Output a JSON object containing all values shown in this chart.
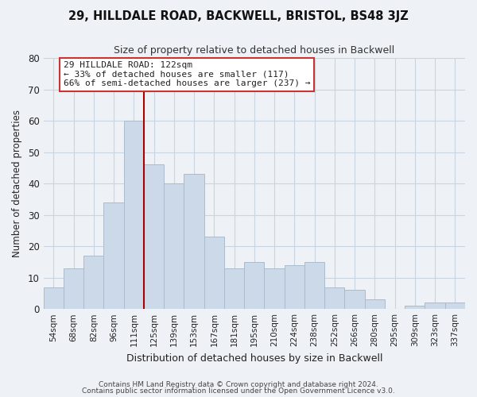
{
  "title": "29, HILLDALE ROAD, BACKWELL, BRISTOL, BS48 3JZ",
  "subtitle": "Size of property relative to detached houses in Backwell",
  "xlabel": "Distribution of detached houses by size in Backwell",
  "ylabel": "Number of detached properties",
  "bar_labels": [
    "54sqm",
    "68sqm",
    "82sqm",
    "96sqm",
    "111sqm",
    "125sqm",
    "139sqm",
    "153sqm",
    "167sqm",
    "181sqm",
    "195sqm",
    "210sqm",
    "224sqm",
    "238sqm",
    "252sqm",
    "266sqm",
    "280sqm",
    "295sqm",
    "309sqm",
    "323sqm",
    "337sqm"
  ],
  "bar_values": [
    7,
    13,
    17,
    34,
    60,
    46,
    40,
    43,
    23,
    13,
    15,
    13,
    14,
    15,
    7,
    6,
    3,
    0,
    1,
    2,
    2
  ],
  "bar_color": "#ccd9e8",
  "bar_edge_color": "#aabccc",
  "vline_x_index": 5,
  "vline_color": "#aa0000",
  "annotation_line1": "29 HILLDALE ROAD: 122sqm",
  "annotation_line2": "← 33% of detached houses are smaller (117)",
  "annotation_line3": "66% of semi-detached houses are larger (237) →",
  "annotation_box_color": "#ffffff",
  "annotation_box_edge": "#cc3333",
  "ylim": [
    0,
    80
  ],
  "yticks": [
    0,
    10,
    20,
    30,
    40,
    50,
    60,
    70,
    80
  ],
  "footer_line1": "Contains HM Land Registry data © Crown copyright and database right 2024.",
  "footer_line2": "Contains public sector information licensed under the Open Government Licence v3.0.",
  "bg_color": "#eef2f7",
  "plot_bg_color": "#eef2f7",
  "grid_color": "#c8d4e0",
  "title_color": "#111111",
  "subtitle_color": "#333333",
  "footer_color": "#444444"
}
